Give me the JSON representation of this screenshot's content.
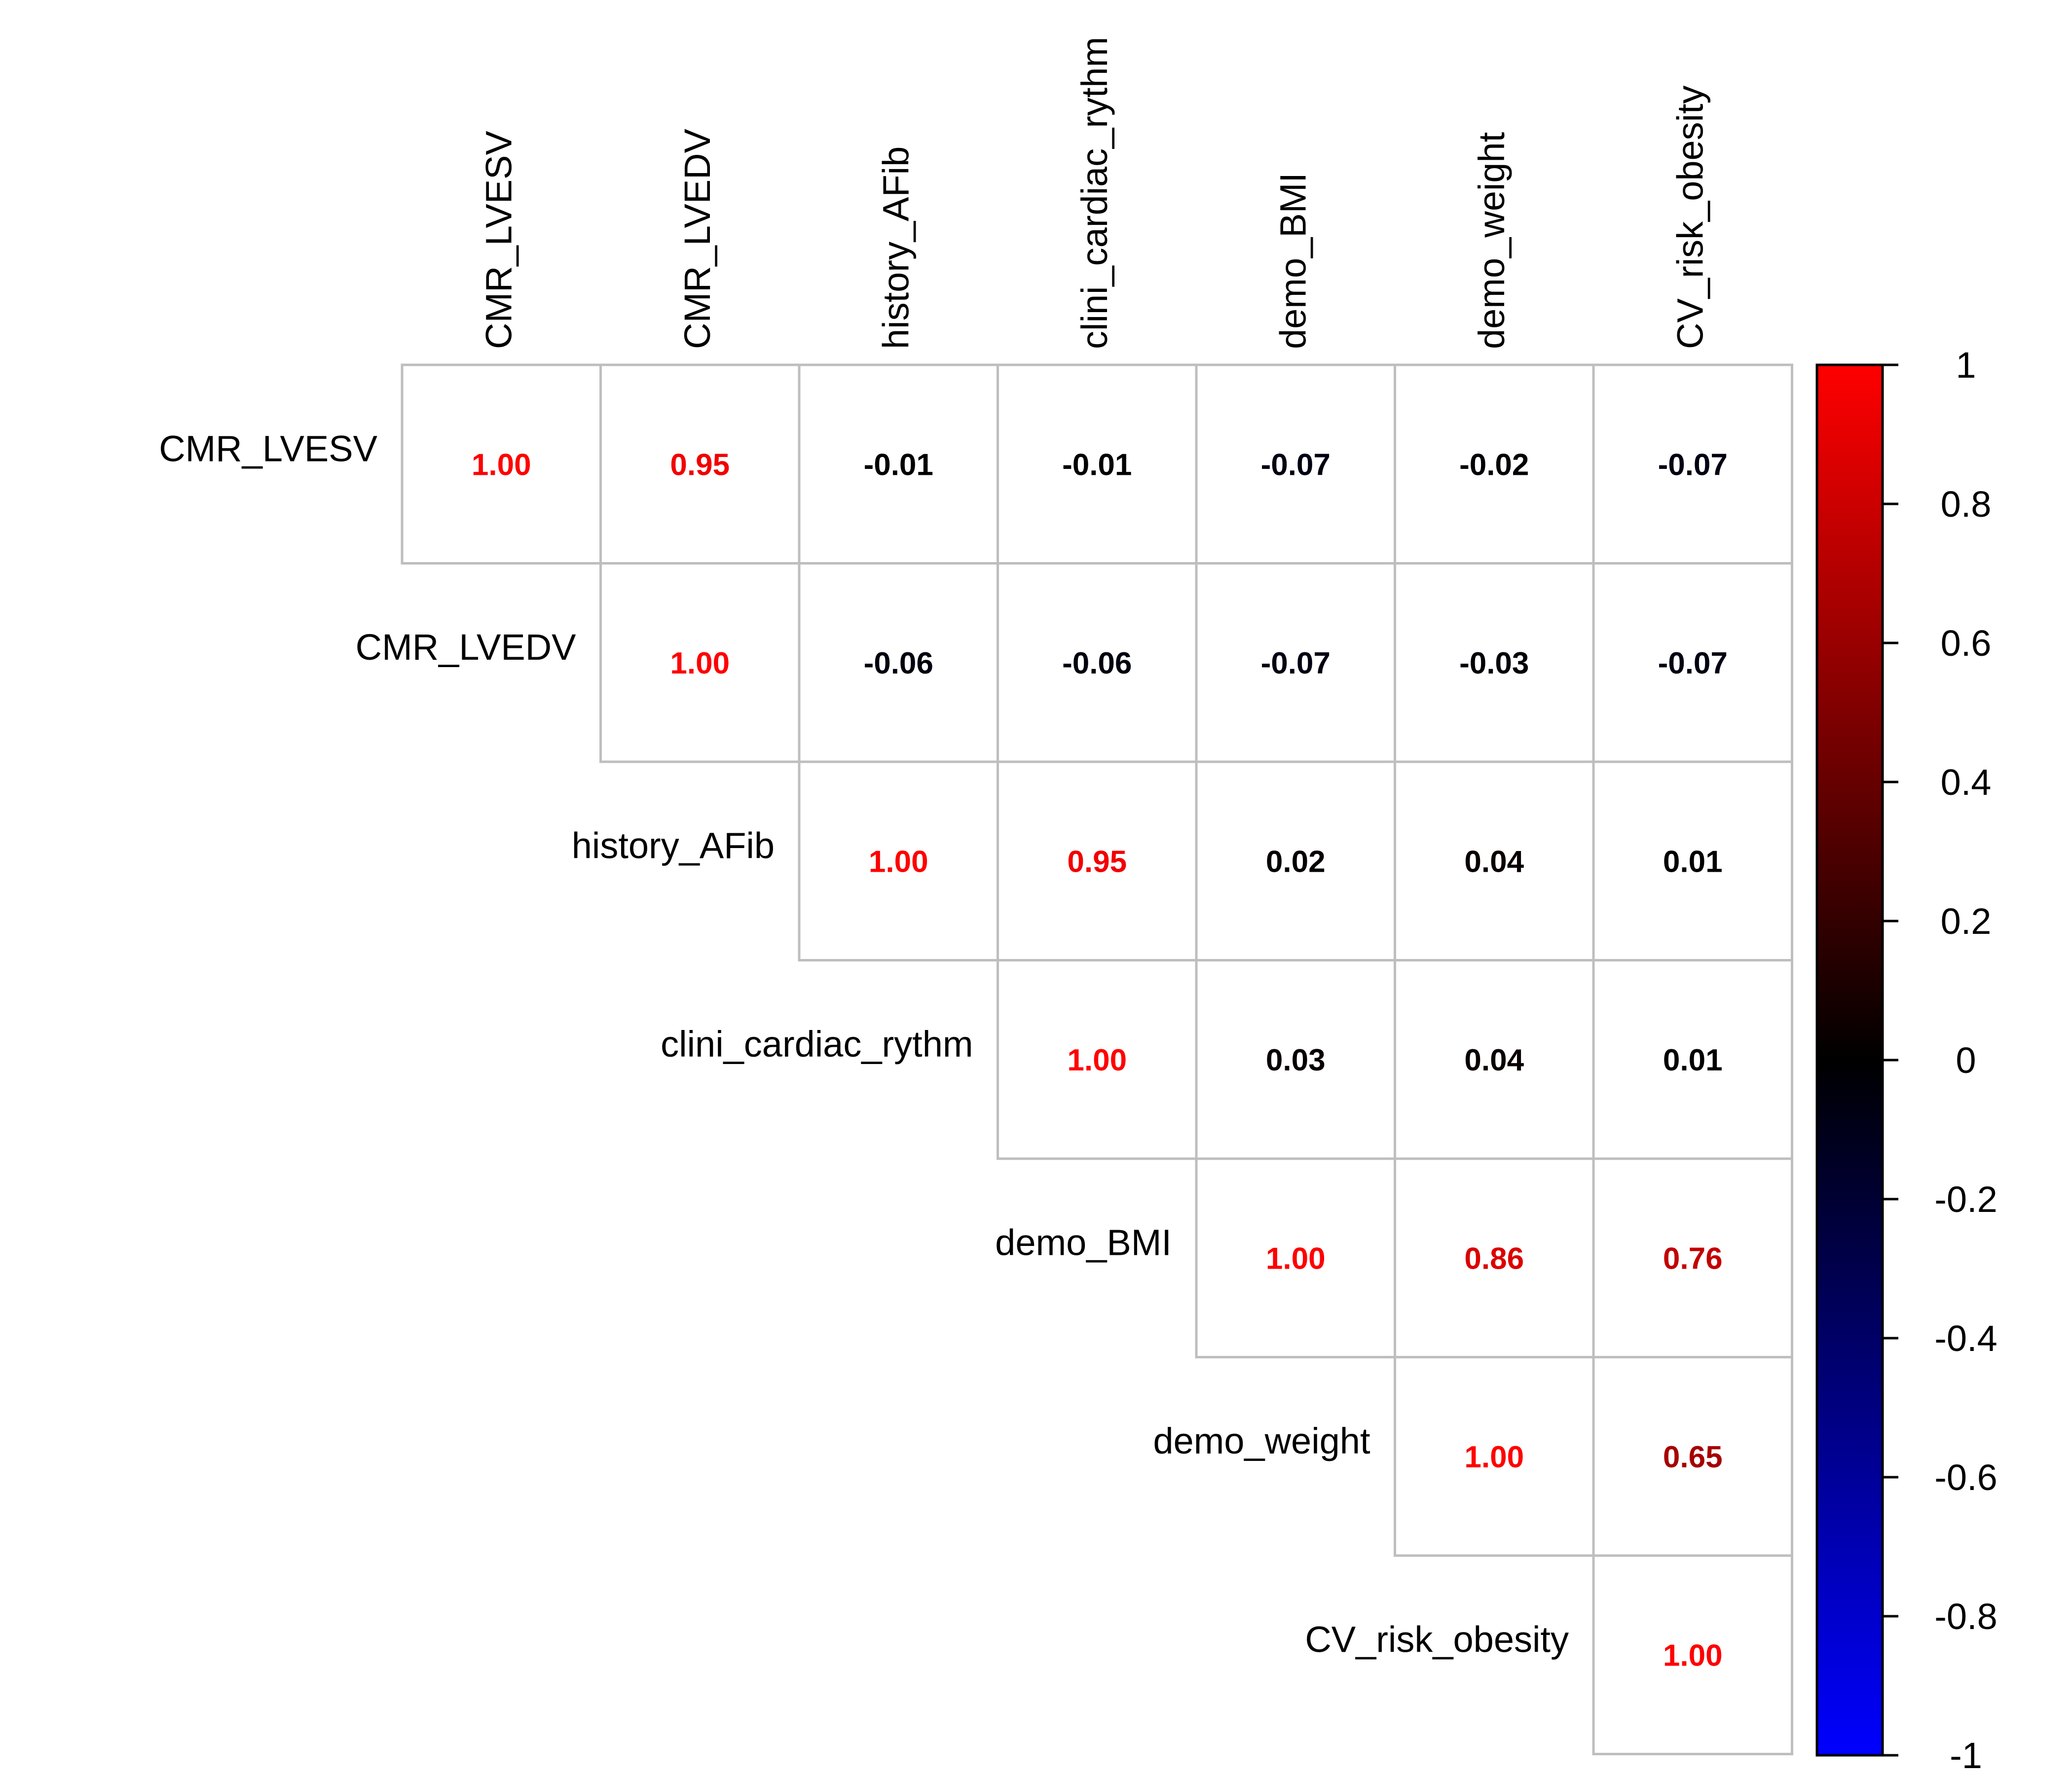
{
  "chart_data": {
    "type": "heatmap",
    "title": "",
    "xlabel": "",
    "ylabel": "",
    "variables": [
      "CMR_LVESV",
      "CMR_LVEDV",
      "history_AFib",
      "clini_cardiac_rythm",
      "demo_BMI",
      "demo_weight",
      "CV_risk_obesity"
    ],
    "layout": "upper-triangle",
    "matrix": [
      [
        1.0,
        0.95,
        -0.01,
        -0.01,
        -0.07,
        -0.02,
        -0.07
      ],
      [
        null,
        1.0,
        -0.06,
        -0.06,
        -0.07,
        -0.03,
        -0.07
      ],
      [
        null,
        null,
        1.0,
        0.95,
        0.02,
        0.04,
        0.01
      ],
      [
        null,
        null,
        null,
        1.0,
        0.03,
        0.04,
        0.01
      ],
      [
        null,
        null,
        null,
        null,
        1.0,
        0.86,
        0.76
      ],
      [
        null,
        null,
        null,
        null,
        null,
        1.0,
        0.65
      ],
      [
        null,
        null,
        null,
        null,
        null,
        null,
        1.0
      ]
    ],
    "value_labels": [
      [
        "1.00",
        "0.95",
        "-0.01",
        "-0.01",
        "-0.07",
        "-0.02",
        "-0.07"
      ],
      [
        "",
        "1.00",
        "-0.06",
        "-0.06",
        "-0.07",
        "-0.03",
        "-0.07"
      ],
      [
        "",
        "",
        "1.00",
        "0.95",
        "0.02",
        "0.04",
        "0.01"
      ],
      [
        "",
        "",
        "",
        "1.00",
        "0.03",
        "0.04",
        "0.01"
      ],
      [
        "",
        "",
        "",
        "",
        "1.00",
        "0.86",
        "0.76"
      ],
      [
        "",
        "",
        "",
        "",
        "",
        "1.00",
        "0.65"
      ],
      [
        "",
        "",
        "",
        "",
        "",
        "",
        "1.00"
      ]
    ],
    "colorbar": {
      "range": [
        -1,
        1
      ],
      "ticks": [
        1,
        0.8,
        0.6,
        0.4,
        0.2,
        0,
        -0.2,
        -0.4,
        -0.6,
        -0.8,
        -1
      ],
      "tick_labels": [
        "1",
        "0.8",
        "0.6",
        "0.4",
        "0.2",
        "0",
        "-0.2",
        "-0.4",
        "-0.6",
        "-0.8",
        "-1"
      ],
      "colors": {
        "negative": "#0000FF",
        "zero": "#000000",
        "positive": "#FF0000"
      },
      "placement": "right"
    },
    "grid": true,
    "grid_color": "#BEBEBE"
  }
}
